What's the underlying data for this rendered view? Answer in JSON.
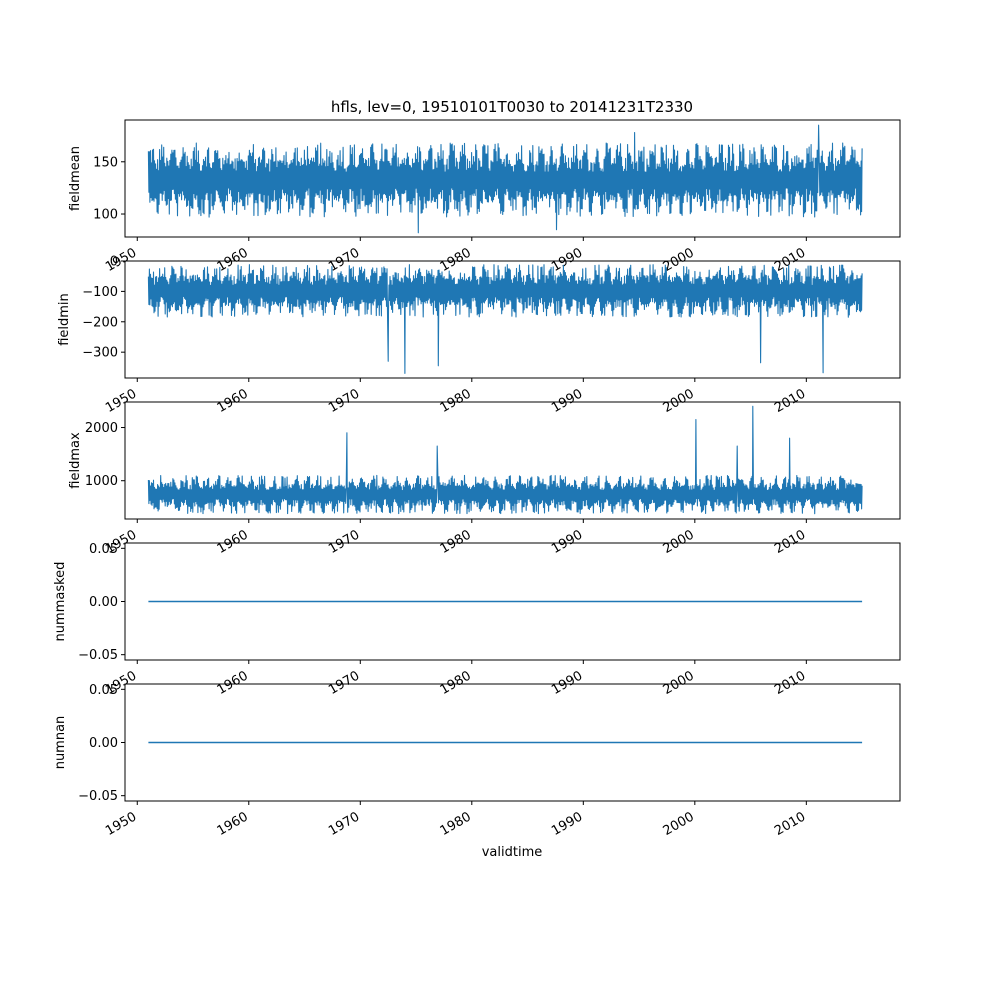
{
  "chart_data": {
    "type": "line",
    "title": "hfls, lev=0, 19510101T0030 to 20141231T2330",
    "xlabel": "validtime",
    "x_tick_labels": [
      "1950",
      "1960",
      "1970",
      "1980",
      "1990",
      "2000",
      "2010"
    ],
    "xlim": [
      1948.9,
      2018.4
    ],
    "x_range": [
      1951.0,
      2015.0
    ],
    "series_color": "#1f77b4",
    "panels": [
      {
        "ylabel": "fieldmean",
        "ylim": [
          78,
          190
        ],
        "y_ticks": [
          100,
          150
        ],
        "y_tick_labels": [
          "100",
          "150"
        ],
        "typical_low": 97,
        "typical_high": 168,
        "extremes": [
          [
            1975.2,
            82
          ],
          [
            1987.6,
            85
          ],
          [
            2011.1,
            185
          ],
          [
            1994.6,
            178
          ]
        ]
      },
      {
        "ylabel": "fieldmin",
        "ylim": [
          -385,
          0
        ],
        "y_ticks": [
          -300,
          -200,
          -100,
          0
        ],
        "y_tick_labels": [
          "−300",
          "−200",
          "−100",
          "0"
        ],
        "typical_low": -185,
        "typical_high": -12,
        "extremes": [
          [
            1974.0,
            -370
          ],
          [
            2011.5,
            -368
          ],
          [
            1972.5,
            -330
          ],
          [
            1977.0,
            -345
          ],
          [
            2005.9,
            -335
          ]
        ]
      },
      {
        "ylabel": "fieldmax",
        "ylim": [
          280,
          2480
        ],
        "y_ticks": [
          1000,
          2000
        ],
        "y_tick_labels": [
          "1000",
          "2000"
        ],
        "typical_low": 380,
        "typical_high": 1100,
        "extremes": [
          [
            2005.2,
            2400
          ],
          [
            2000.1,
            2150
          ],
          [
            1968.8,
            1900
          ],
          [
            2008.5,
            1800
          ],
          [
            1976.9,
            1650
          ],
          [
            2003.8,
            1650
          ]
        ]
      },
      {
        "ylabel": "nummasked",
        "ylim": [
          -0.055,
          0.055
        ],
        "y_ticks": [
          -0.05,
          0.0,
          0.05
        ],
        "y_tick_labels": [
          "−0.05",
          "0.00",
          "0.05"
        ],
        "constant": 0.0
      },
      {
        "ylabel": "numnan",
        "ylim": [
          -0.055,
          0.055
        ],
        "y_ticks": [
          -0.05,
          0.0,
          0.05
        ],
        "y_tick_labels": [
          "−0.05",
          "0.00",
          "0.05"
        ],
        "constant": 0.0
      }
    ]
  }
}
